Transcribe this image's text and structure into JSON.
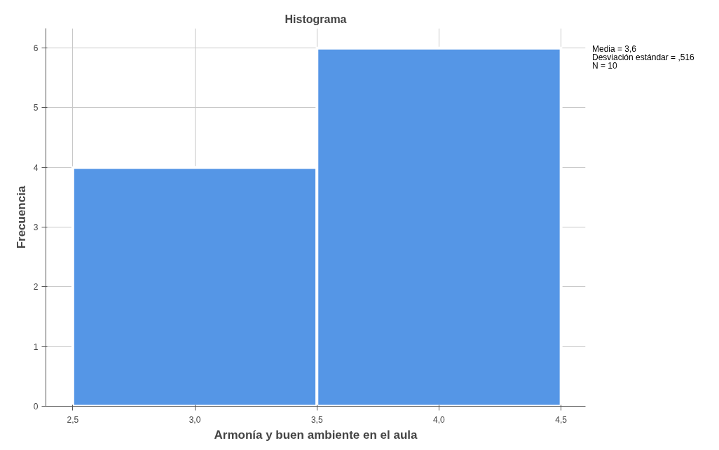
{
  "chart_data": {
    "type": "histogram",
    "title": "Histograma",
    "xlabel": "Armonía y buen ambiente en el aula",
    "ylabel": "Frecuencia",
    "bins": [
      2.5,
      3.5,
      4.5
    ],
    "values": [
      4,
      6
    ],
    "color": "#5596e6",
    "xlim": [
      2.39,
      4.6
    ],
    "xticks": [
      {
        "value": 2.5,
        "label": "2,5"
      },
      {
        "value": 3.0,
        "label": "3,0"
      },
      {
        "value": 3.5,
        "label": "3,5"
      },
      {
        "value": 4.0,
        "label": "4,0"
      },
      {
        "value": 4.5,
        "label": "4,5"
      }
    ],
    "ylim": [
      0,
      6.33
    ],
    "yticks": [
      0,
      1,
      2,
      3,
      4,
      5,
      6
    ],
    "grid": true,
    "annotations": [
      "Media = 3,6",
      "Desviación estándar = ,516",
      "N = 10"
    ]
  }
}
